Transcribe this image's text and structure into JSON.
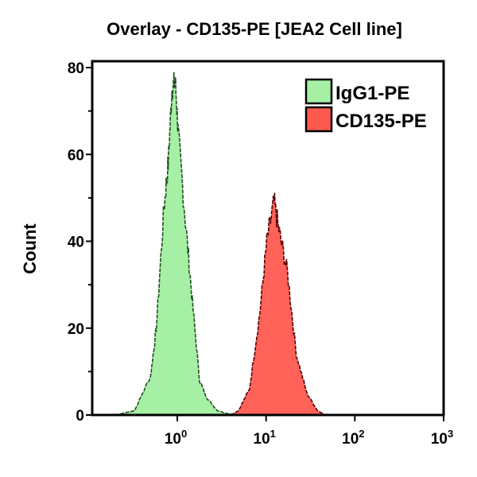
{
  "chart_data": {
    "type": "area",
    "title": "Overlay - CD135-PE [JEA2 Cell line]",
    "xlabel": "",
    "ylabel": "Count",
    "xscale": "log",
    "xlim": [
      0.11,
      1000
    ],
    "ylim": [
      0,
      80
    ],
    "yticks": [
      0,
      20,
      40,
      60,
      80
    ],
    "xticks": [
      {
        "base": "10",
        "exp": "0",
        "value": 1
      },
      {
        "base": "10",
        "exp": "1",
        "value": 10
      },
      {
        "base": "10",
        "exp": "2",
        "value": 100
      },
      {
        "base": "10",
        "exp": "3",
        "value": 1000
      }
    ],
    "grid": false,
    "legend_placement": "top-right",
    "series": [
      {
        "name": "IgG1-PE",
        "color": "#a6f0a6",
        "edge": "#1f4f1f",
        "x": [
          0.2,
          0.33,
          0.5,
          0.58,
          0.71,
          0.79,
          0.87,
          0.95,
          1.03,
          1.23,
          1.45,
          1.78,
          2.14,
          2.82,
          3.72,
          5
        ],
        "y": [
          0,
          1,
          9,
          20,
          48,
          58,
          75,
          77,
          64,
          45,
          28,
          8,
          4,
          1,
          0.3,
          0
        ]
      },
      {
        "name": "CD135-PE",
        "color": "#ff5a50",
        "edge": "#5a0000",
        "x": [
          4,
          4.9,
          6.5,
          8.5,
          10.2,
          12.3,
          14.1,
          17.4,
          21.9,
          28.8,
          38,
          46.8
        ],
        "y": [
          0,
          1,
          6,
          23.5,
          40,
          49,
          42,
          33,
          14,
          5,
          1,
          0
        ]
      }
    ]
  }
}
